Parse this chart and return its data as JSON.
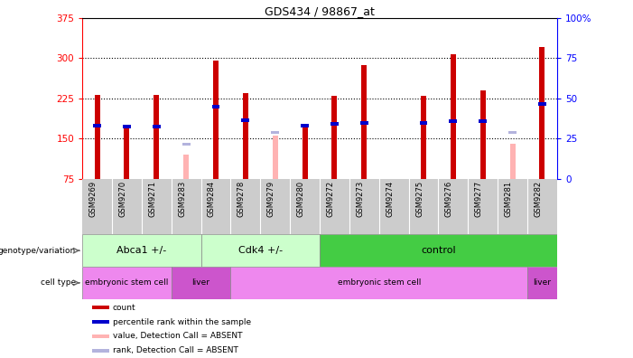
{
  "title": "GDS434 / 98867_at",
  "samples": [
    "GSM9269",
    "GSM9270",
    "GSM9271",
    "GSM9283",
    "GSM9284",
    "GSM9278",
    "GSM9279",
    "GSM9280",
    "GSM9272",
    "GSM9273",
    "GSM9274",
    "GSM9275",
    "GSM9276",
    "GSM9277",
    "GSM9281",
    "GSM9282"
  ],
  "count_values": [
    232,
    175,
    232,
    null,
    295,
    235,
    null,
    175,
    230,
    287,
    null,
    230,
    308,
    240,
    null,
    320
  ],
  "count_absent": [
    null,
    null,
    null,
    120,
    null,
    null,
    155,
    null,
    null,
    null,
    null,
    null,
    null,
    null,
    140,
    null
  ],
  "rank_values": [
    175,
    172,
    172,
    null,
    210,
    185,
    null,
    175,
    178,
    180,
    null,
    180,
    183,
    183,
    null,
    215
  ],
  "rank_absent": [
    null,
    null,
    null,
    140,
    null,
    null,
    162,
    null,
    null,
    null,
    null,
    null,
    null,
    null,
    162,
    null
  ],
  "ylim_left": [
    75,
    375
  ],
  "ylim_right": [
    0,
    100
  ],
  "yticks_left": [
    75,
    150,
    225,
    300,
    375
  ],
  "yticks_right": [
    0,
    25,
    50,
    75,
    100
  ],
  "ytick_labels_right": [
    "0",
    "25",
    "50",
    "75",
    "100%"
  ],
  "bar_color": "#cc0000",
  "rank_color": "#0000cc",
  "absent_bar_color": "#ffb3b3",
  "absent_rank_color": "#b3b3dd",
  "genotype_groups": [
    {
      "label": "Abca1 +/-",
      "start": 0,
      "end": 3,
      "color": "#ccffcc"
    },
    {
      "label": "Cdk4 +/-",
      "start": 4,
      "end": 7,
      "color": "#ccffcc"
    },
    {
      "label": "control",
      "start": 8,
      "end": 15,
      "color": "#44cc44"
    }
  ],
  "celltype_groups": [
    {
      "label": "embryonic stem cell",
      "start": 0,
      "end": 2,
      "color": "#ee88ee"
    },
    {
      "label": "liver",
      "start": 3,
      "end": 4,
      "color": "#cc55cc"
    },
    {
      "label": "embryonic stem cell",
      "start": 5,
      "end": 14,
      "color": "#ee88ee"
    },
    {
      "label": "liver",
      "start": 15,
      "end": 15,
      "color": "#cc55cc"
    }
  ],
  "legend_items": [
    {
      "label": "count",
      "color": "#cc0000"
    },
    {
      "label": "percentile rank within the sample",
      "color": "#0000cc"
    },
    {
      "label": "value, Detection Call = ABSENT",
      "color": "#ffb3b3"
    },
    {
      "label": "rank, Detection Call = ABSENT",
      "color": "#b3b3dd"
    }
  ]
}
